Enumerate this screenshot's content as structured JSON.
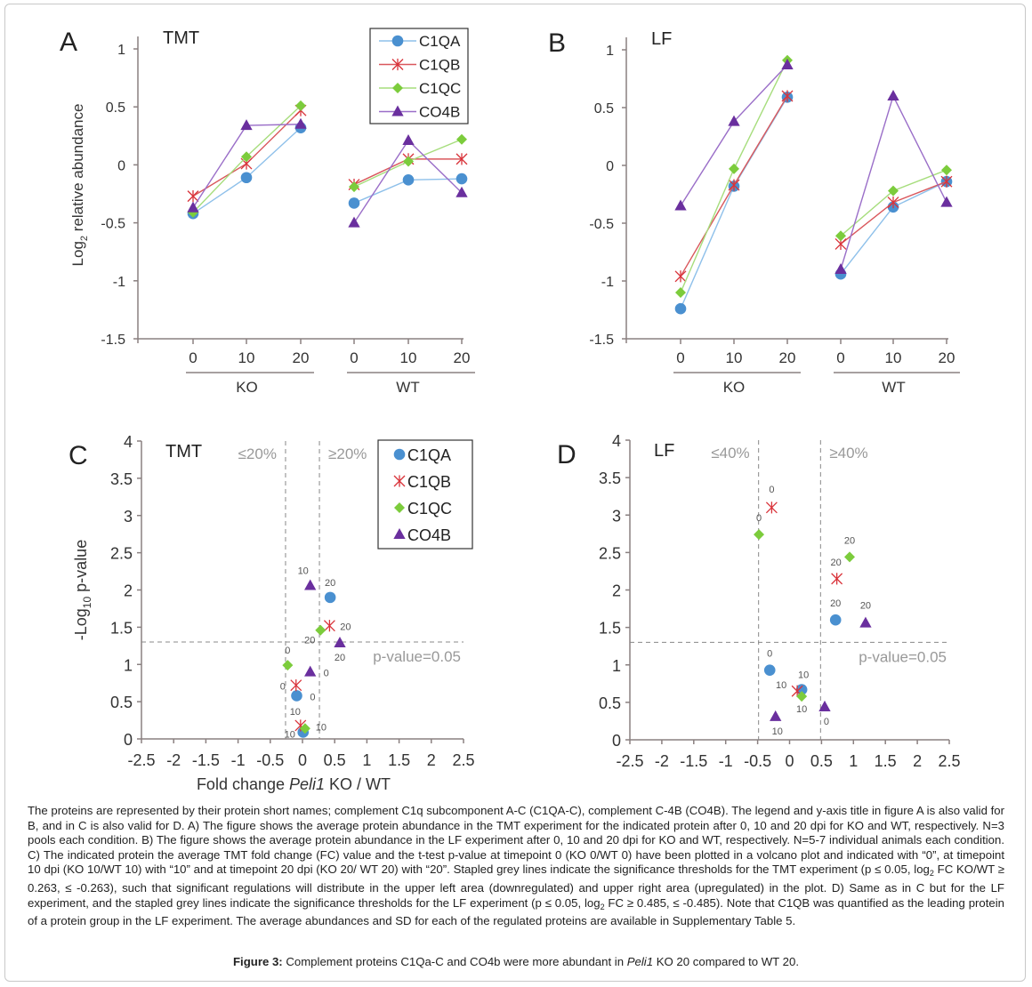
{
  "colors": {
    "C1QA": "#4a90d0",
    "C1QB": "#d9333a",
    "C1QC": "#7ccc3c",
    "CO4B": "#6a2f9e",
    "C1QA_line": "#8ec0ea",
    "C1QB_line": "#d9575c",
    "C1QC_line": "#a6dd7c",
    "CO4B_line": "#9a6ec8",
    "axis": "#8a8080",
    "threshold": "#888888",
    "grey_text": "#999999"
  },
  "chart_data": [
    {
      "panel": "A",
      "type": "line",
      "title": "TMT",
      "ylabel": "Log2 relative abundance",
      "ylim": [
        -1.5,
        1
      ],
      "yticks": [
        1,
        0.5,
        0,
        -0.5,
        -1,
        -1.5
      ],
      "ytick_labels": [
        "1",
        "0.5",
        "0",
        "-0.5",
        "-1",
        "-1.5"
      ],
      "groups": [
        {
          "name": "KO",
          "x": [
            "0",
            "10",
            "20"
          ]
        },
        {
          "name": "WT",
          "x": [
            "0",
            "10",
            "20"
          ]
        }
      ],
      "legend": [
        "C1QA",
        "C1QB",
        "C1QC",
        "CO4B"
      ],
      "legend_position": "top-right",
      "series": [
        {
          "name": "C1QA",
          "marker": "circle",
          "KO": [
            -0.42,
            -0.11,
            0.32
          ],
          "WT": [
            -0.33,
            -0.13,
            -0.12
          ]
        },
        {
          "name": "C1QB",
          "marker": "asterisk",
          "KO": [
            -0.27,
            0.01,
            0.47
          ],
          "WT": [
            -0.17,
            0.05,
            0.05
          ]
        },
        {
          "name": "C1QC",
          "marker": "diamond",
          "KO": [
            -0.41,
            0.07,
            0.51
          ],
          "WT": [
            -0.19,
            0.03,
            0.22
          ]
        },
        {
          "name": "CO4B",
          "marker": "triangle",
          "KO": [
            -0.37,
            0.34,
            0.35
          ],
          "WT": [
            -0.5,
            0.21,
            -0.24
          ]
        }
      ]
    },
    {
      "panel": "B",
      "type": "line",
      "title": "LF",
      "ylim": [
        -1.5,
        1
      ],
      "yticks": [
        1,
        0.5,
        0,
        -0.5,
        -1,
        -1.5
      ],
      "ytick_labels": [
        "1",
        "0.5",
        "0",
        "-0.5",
        "-1",
        "-1.5"
      ],
      "groups": [
        {
          "name": "KO",
          "x": [
            "0",
            "10",
            "20"
          ]
        },
        {
          "name": "WT",
          "x": [
            "0",
            "10",
            "20"
          ]
        }
      ],
      "series": [
        {
          "name": "C1QA",
          "marker": "circle",
          "KO": [
            -1.24,
            -0.18,
            0.59
          ],
          "WT": [
            -0.94,
            -0.36,
            -0.14
          ]
        },
        {
          "name": "C1QB",
          "marker": "asterisk",
          "KO": [
            -0.96,
            -0.17,
            0.6
          ],
          "WT": [
            -0.68,
            -0.32,
            -0.14
          ]
        },
        {
          "name": "C1QC",
          "marker": "diamond",
          "KO": [
            -1.1,
            -0.03,
            0.91
          ],
          "WT": [
            -0.61,
            -0.22,
            -0.04
          ]
        },
        {
          "name": "CO4B",
          "marker": "triangle",
          "KO": [
            -0.35,
            0.38,
            0.87
          ],
          "WT": [
            -0.9,
            0.6,
            -0.32
          ]
        }
      ]
    },
    {
      "panel": "C",
      "type": "scatter",
      "title": "TMT",
      "xlabel": "Fold change Peli1 KO / WT",
      "ylabel": "-Log10 p-value",
      "xlim": [
        -2.5,
        2.5
      ],
      "ylim": [
        0,
        4
      ],
      "xticks": [
        -2.5,
        -2,
        -1.5,
        -1,
        -0.5,
        0,
        0.5,
        1,
        1.5,
        2,
        2.5
      ],
      "xtick_labels": [
        "-2.5",
        "-2",
        "-1.5",
        "-1",
        "-0.5",
        "0",
        "0.5",
        "1",
        "1.5",
        "2",
        "2.5"
      ],
      "yticks": [
        0,
        0.5,
        1,
        1.5,
        2,
        2.5,
        3,
        3.5,
        4
      ],
      "ytick_labels": [
        "0",
        "0.5",
        "1",
        "1.5",
        "2",
        "2.5",
        "3",
        "3.5",
        "4"
      ],
      "thresholds": {
        "x": [
          -0.263,
          0.263
        ],
        "y": 1.301
      },
      "threshold_labels": {
        "left": "≤20%",
        "right": "≥20%",
        "pvalue": "p-value=0.05"
      },
      "legend": [
        "C1QA",
        "C1QB",
        "C1QC",
        "CO4B"
      ],
      "legend_position": "top-right",
      "series": [
        {
          "name": "C1QA",
          "marker": "circle",
          "points": [
            {
              "x": -0.09,
              "y": 0.58,
              "label": "0"
            },
            {
              "x": 0.01,
              "y": 0.09,
              "label": "10"
            },
            {
              "x": 0.43,
              "y": 1.9,
              "label": "20"
            }
          ]
        },
        {
          "name": "C1QB",
          "marker": "asterisk",
          "points": [
            {
              "x": -0.1,
              "y": 0.72,
              "label": "0"
            },
            {
              "x": -0.03,
              "y": 0.18,
              "label": "10"
            },
            {
              "x": 0.42,
              "y": 1.52,
              "label": "20"
            }
          ]
        },
        {
          "name": "C1QC",
          "marker": "diamond",
          "points": [
            {
              "x": -0.23,
              "y": 0.99,
              "label": "0"
            },
            {
              "x": 0.04,
              "y": 0.14,
              "label": "10"
            },
            {
              "x": 0.28,
              "y": 1.46,
              "label": "20"
            }
          ]
        },
        {
          "name": "CO4B",
          "marker": "triangle",
          "points": [
            {
              "x": 0.12,
              "y": 0.9,
              "label": "0"
            },
            {
              "x": 0.12,
              "y": 2.06,
              "label": "10"
            },
            {
              "x": 0.58,
              "y": 1.29,
              "label": "20"
            }
          ]
        }
      ]
    },
    {
      "panel": "D",
      "type": "scatter",
      "title": "LF",
      "xlim": [
        -2.5,
        2.5
      ],
      "ylim": [
        0,
        4
      ],
      "xticks": [
        -2.5,
        -2,
        -1.5,
        -1,
        -0.5,
        0,
        0.5,
        1,
        1.5,
        2,
        2.5
      ],
      "xtick_labels": [
        "-2.5",
        "-2",
        "-1.5",
        "-1",
        "-0.5",
        "0",
        "0.5",
        "1",
        "1.5",
        "2",
        "2.5"
      ],
      "yticks": [
        0,
        0.5,
        1,
        1.5,
        2,
        2.5,
        3,
        3.5,
        4
      ],
      "ytick_labels": [
        "0",
        "0.5",
        "1",
        "1.5",
        "2",
        "2.5",
        "3",
        "3.5",
        "4"
      ],
      "thresholds": {
        "x": [
          -0.485,
          0.485
        ],
        "y": 1.301
      },
      "threshold_labels": {
        "left": "≤40%",
        "right": "≥40%",
        "pvalue": "p-value=0.05"
      },
      "series": [
        {
          "name": "C1QA",
          "marker": "circle",
          "points": [
            {
              "x": -0.31,
              "y": 0.93,
              "label": "0"
            },
            {
              "x": 0.19,
              "y": 0.67,
              "label": "10"
            },
            {
              "x": 0.72,
              "y": 1.6,
              "label": "20"
            }
          ]
        },
        {
          "name": "C1QB",
          "marker": "asterisk",
          "points": [
            {
              "x": -0.28,
              "y": 3.1,
              "label": "0"
            },
            {
              "x": 0.12,
              "y": 0.65,
              "label": "10"
            },
            {
              "x": 0.74,
              "y": 2.15,
              "label": "20"
            }
          ]
        },
        {
          "name": "C1QC",
          "marker": "diamond",
          "points": [
            {
              "x": -0.48,
              "y": 2.74,
              "label": "0"
            },
            {
              "x": 0.19,
              "y": 0.58,
              "label": "10"
            },
            {
              "x": 0.94,
              "y": 2.44,
              "label": "20"
            }
          ]
        },
        {
          "name": "CO4B",
          "marker": "triangle",
          "points": [
            {
              "x": 0.55,
              "y": 0.44,
              "label": "0"
            },
            {
              "x": -0.22,
              "y": 0.31,
              "label": "10"
            },
            {
              "x": 1.19,
              "y": 1.56,
              "label": "20"
            }
          ]
        }
      ]
    }
  ],
  "panel_letters": [
    "A",
    "B",
    "C",
    "D"
  ],
  "caption": {
    "paragraph": "The proteins are represented by their protein short names; complement C1q subcomponent A-C (C1QA-C), complement C-4B (CO4B). The legend and y-axis title in figure A is also valid for B, and in C is also valid for D. A) The figure shows the average protein abundance in the TMT experiment for the indicated protein after 0, 10 and 20 dpi for KO and WT, respectively. N=3 pools each condition. B) The figure shows the average protein abundance in the LF experiment after 0, 10 and 20 dpi for KO and WT, respectively. N=5-7 individual animals each condition. C) The indicated protein the average TMT fold change (FC) value and the t-test p-value at timepoint 0 (KO 0/WT 0) have been plotted in a volcano plot and indicated with “0”, at timepoint 10 dpi (KO 10/WT 10) with “10” and at timepoint 20 dpi (KO 20/ WT 20) with “20”. Stapled grey lines indicate the significance thresholds for the TMT experiment (p ≤ 0.05, log2 FC KO/WT ≥ 0.263, ≤ -0.263), such that significant regulations will distribute in the upper left area (downregulated) and upper right area (upregulated) in the plot. D) Same as in C but for the LF experiment, and the stapled grey lines indicate the significance thresholds for the LF experiment (p ≤ 0.05, log2 FC ≥ 0.485, ≤ -0.485). Note that C1QB was quantified as the leading protein of a protein group in the LF experiment. The average abundances and SD for each of the regulated proteins are available in Supplementary Table 5.",
    "figure_label": "Figure 3:",
    "figure_title_pre": "Complement proteins C1Qa-C and CO4b were more abundant in ",
    "figure_title_gene": "Peli1",
    "figure_title_post": " KO 20 compared to WT 20."
  }
}
